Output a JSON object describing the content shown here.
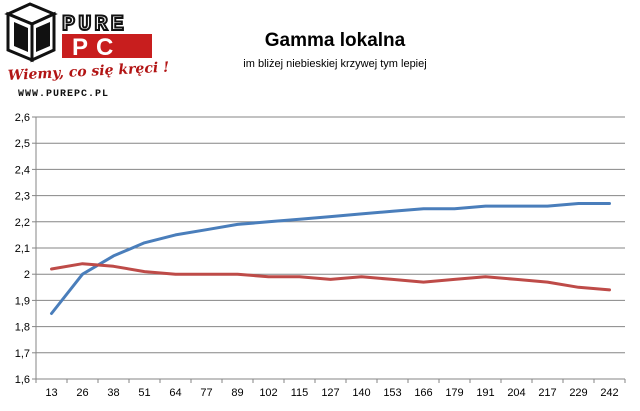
{
  "logo": {
    "brand_top": "PURE",
    "brand_bottom": "PC",
    "slogan": "Wiemy, co się kręci !",
    "url": "WWW.PUREPC.PL"
  },
  "chart_data": {
    "type": "line",
    "title": "Gamma lokalna",
    "subtitle": "im bliżej niebieskiej krzywej tym lepiej",
    "xlabel": "",
    "ylabel": "",
    "categories": [
      "13",
      "26",
      "38",
      "51",
      "64",
      "77",
      "89",
      "102",
      "115",
      "127",
      "140",
      "153",
      "166",
      "179",
      "191",
      "204",
      "217",
      "229",
      "242"
    ],
    "ylim": [
      1.6,
      2.6
    ],
    "yticks": [
      "1,6",
      "1,7",
      "1,8",
      "1,9",
      "2",
      "2,1",
      "2,2",
      "2,3",
      "2,4",
      "2,5",
      "2,6"
    ],
    "grid": true,
    "legend": "none",
    "series": [
      {
        "color": "#4a7ebb",
        "values": [
          1.85,
          2.0,
          2.07,
          2.12,
          2.15,
          2.17,
          2.19,
          2.2,
          2.21,
          2.22,
          2.23,
          2.24,
          2.25,
          2.25,
          2.26,
          2.26,
          2.26,
          2.27,
          2.27
        ]
      },
      {
        "color": "#be4b48",
        "values": [
          2.02,
          2.04,
          2.03,
          2.01,
          2.0,
          2.0,
          2.0,
          1.99,
          1.99,
          1.98,
          1.99,
          1.98,
          1.97,
          1.98,
          1.99,
          1.98,
          1.97,
          1.95,
          1.94
        ]
      }
    ]
  }
}
